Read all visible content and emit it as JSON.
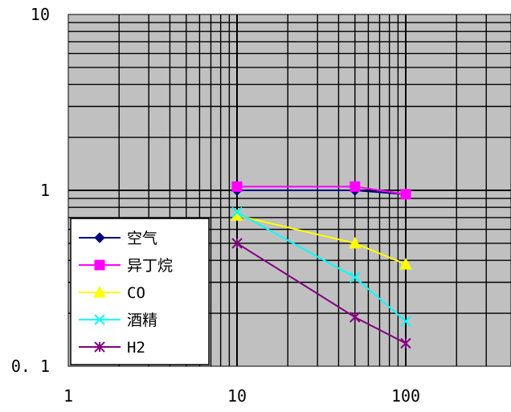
{
  "chart_data": {
    "type": "line",
    "title": "",
    "xlabel": "",
    "ylabel": "",
    "x_scale": "log",
    "y_scale": "log",
    "xlim": [
      1,
      300
    ],
    "ylim": [
      0.1,
      10
    ],
    "grid": true,
    "background": "#c0c0c0",
    "x_tick_labels": [
      "1",
      "10",
      "100"
    ],
    "y_tick_labels": [
      "10",
      "1",
      "0. 1"
    ],
    "legend_position": "bottom-left",
    "x": [
      10,
      50,
      100
    ],
    "series": [
      {
        "name": "空气",
        "values": [
          1.0,
          1.0,
          0.95
        ],
        "color": "#000080",
        "marker": "diamond"
      },
      {
        "name": "异丁烷",
        "values": [
          1.05,
          1.05,
          0.95
        ],
        "color": "#ff00ff",
        "marker": "square"
      },
      {
        "name": "CO",
        "values": [
          0.72,
          0.5,
          0.38
        ],
        "color": "#ffff00",
        "marker": "triangle"
      },
      {
        "name": "酒精",
        "values": [
          0.75,
          0.32,
          0.18
        ],
        "color": "#00ffff",
        "marker": "x"
      },
      {
        "name": "H2",
        "values": [
          0.5,
          0.19,
          0.135
        ],
        "color": "#800080",
        "marker": "star"
      }
    ]
  }
}
